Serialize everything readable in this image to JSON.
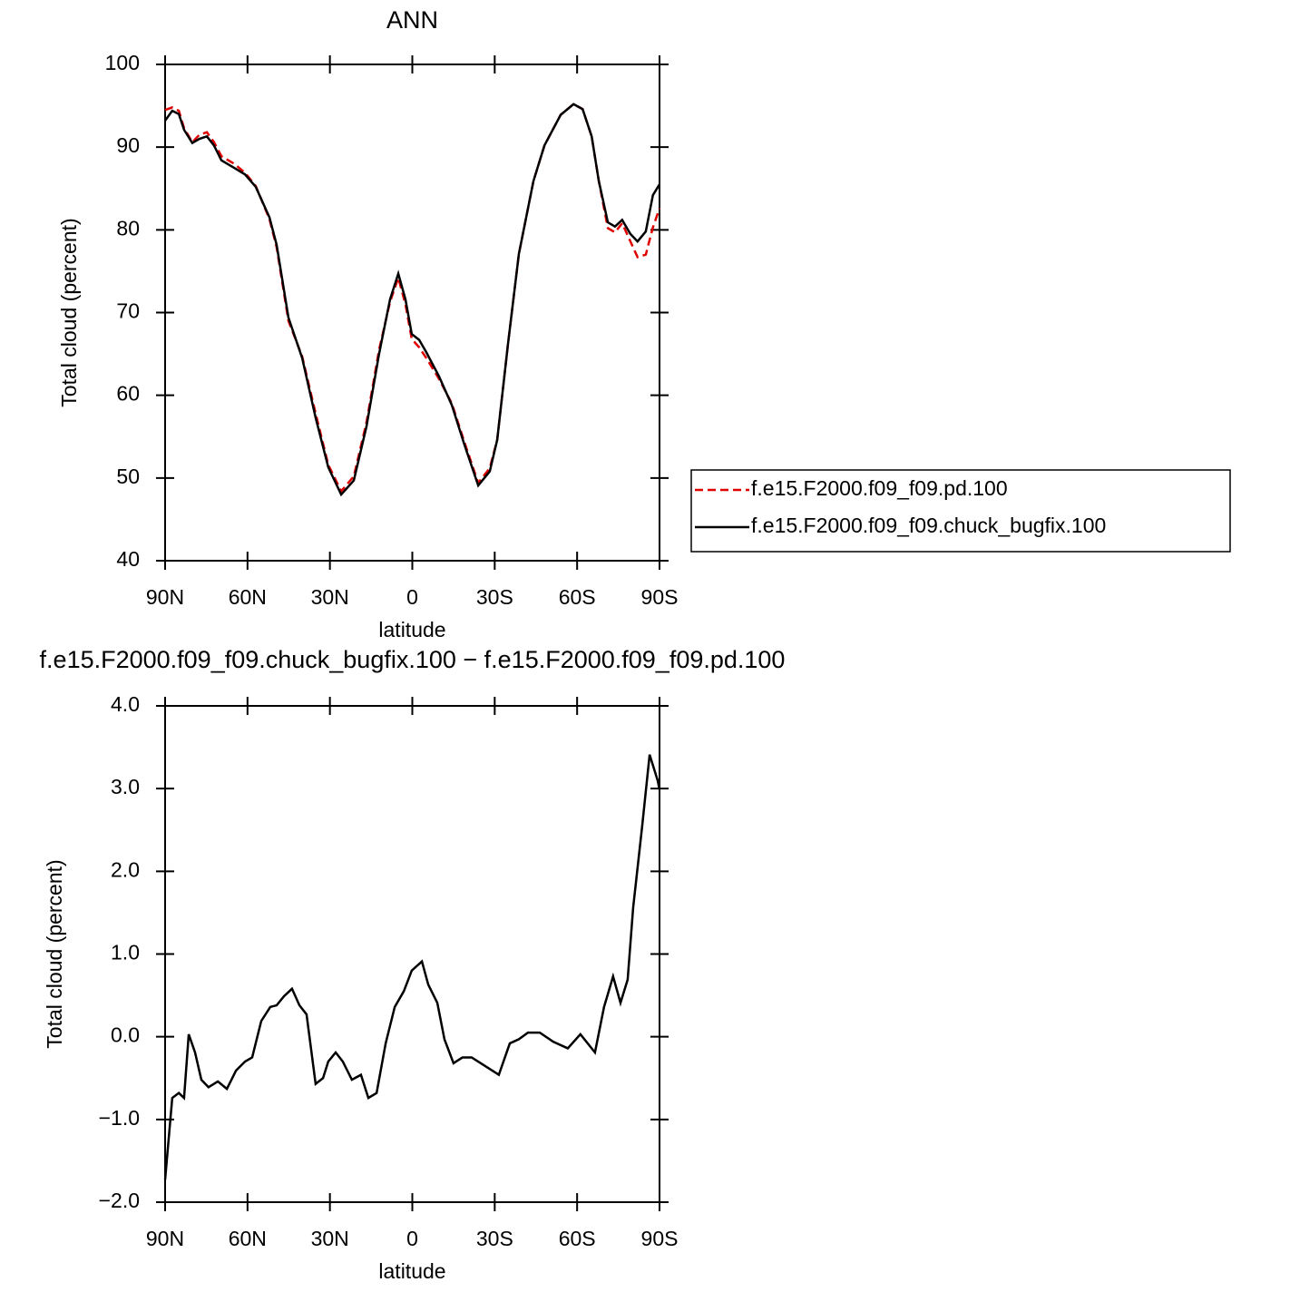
{
  "chart_data": [
    {
      "type": "line",
      "title": "ANN",
      "x_label": "latitude",
      "y_label": "Total cloud (percent)",
      "x": [
        90,
        87.4,
        85.0,
        83.1,
        80.1,
        77.5,
        74.8,
        72.2,
        69.5,
        64.9,
        60.9,
        57.0,
        52.0,
        49.4,
        45.1,
        40.1,
        35.2,
        30.6,
        25.9,
        21.3,
        16.7,
        12.1,
        8.1,
        5.1,
        2.5,
        0.2,
        -2.5,
        -5.1,
        -9.7,
        -14.4,
        -19.0,
        -24.0,
        -28.2,
        -30.9,
        -34.8,
        -38.8,
        -44.1,
        -48.1,
        -54.0,
        -58.7,
        -62.0,
        -65.3,
        -67.9,
        -71.2,
        -73.8,
        -76.4,
        -79.4,
        -82.0,
        -85.0,
        -87.6,
        -90
      ],
      "series": [
        {
          "name": "f.e15.F2000.f09_f09.pd.100",
          "color": "#e00000",
          "line_style": "dashed",
          "values": [
            94.5,
            94.8,
            94.4,
            92.3,
            90.6,
            91.5,
            91.8,
            90.6,
            88.9,
            88.0,
            86.9,
            85.3,
            81.3,
            77.9,
            69.0,
            64.7,
            57.8,
            51.6,
            48.4,
            50.2,
            56.7,
            65.5,
            71.3,
            74.2,
            71.0,
            66.8,
            65.8,
            64.5,
            62.0,
            59.0,
            54.3,
            49.4,
            51.2,
            54.6,
            66.1,
            77.1,
            85.9,
            90.2,
            93.9,
            95.2,
            94.6,
            91.3,
            85.9,
            80.2,
            79.7,
            80.8,
            78.6,
            76.7,
            77.0,
            80.3,
            82.6
          ]
        },
        {
          "name": "f.e15.F2000.f09_f09.chuck_bugfix.100",
          "color": "#000000",
          "line_style": "solid",
          "values": [
            93.2,
            94.4,
            94.0,
            92.1,
            90.5,
            91.0,
            91.3,
            90.2,
            88.4,
            87.5,
            86.7,
            85.2,
            81.5,
            78.2,
            69.4,
            64.5,
            57.3,
            51.3,
            48.0,
            49.7,
            56.2,
            65.0,
            71.6,
            74.7,
            71.6,
            67.4,
            66.7,
            65.2,
            62.3,
            58.8,
            54.0,
            49.1,
            50.8,
            54.6,
            66.1,
            77.1,
            85.9,
            90.2,
            93.9,
            95.2,
            94.6,
            91.3,
            85.9,
            80.9,
            80.4,
            81.2,
            79.5,
            78.6,
            79.8,
            84.2,
            85.5
          ]
        }
      ],
      "xlim": [
        90,
        -90
      ],
      "ylim": [
        40,
        100
      ],
      "xticks": [
        {
          "value": 90,
          "label": "90N"
        },
        {
          "value": 60,
          "label": "60N"
        },
        {
          "value": 30,
          "label": "30N"
        },
        0,
        {
          "value": -30,
          "label": "30S"
        },
        {
          "value": -60,
          "label": "60S"
        },
        {
          "value": -90,
          "label": "90S"
        }
      ],
      "yticks": [
        40,
        50,
        60,
        70,
        80,
        90,
        100
      ],
      "legend": "right"
    },
    {
      "type": "line",
      "title": "f.e15.F2000.f09_f09.chuck_bugfix.100 − f.e15.F2000.f09_f09.pd.100",
      "x_label": "latitude",
      "y_label": "Total cloud (percent)",
      "x": [
        90,
        87.4,
        85.0,
        83.1,
        81.4,
        79.1,
        76.8,
        74.2,
        70.8,
        67.5,
        64.2,
        60.9,
        58.3,
        55.0,
        51.7,
        49.4,
        46.7,
        43.8,
        41.1,
        38.5,
        35.2,
        32.5,
        30.6,
        27.9,
        25.3,
        22.0,
        18.7,
        16.0,
        13.0,
        9.7,
        6.4,
        3.1,
        0.2,
        -3.5,
        -5.8,
        -9.1,
        -11.7,
        -15.0,
        -18.3,
        -21.6,
        -24.9,
        -28.2,
        -31.5,
        -35.5,
        -38.8,
        -42.1,
        -46.4,
        -51.3,
        -56.6,
        -61.2,
        -66.5,
        -69.8,
        -73.1,
        -75.8,
        -78.4,
        -80.4,
        -83.7,
        -86.4,
        -89.3,
        -90
      ],
      "series": [
        {
          "color": "#000000",
          "line_style": "solid",
          "values": [
            -1.73,
            -0.74,
            -0.68,
            -0.74,
            0.03,
            -0.19,
            -0.52,
            -0.61,
            -0.54,
            -0.63,
            -0.41,
            -0.3,
            -0.25,
            0.19,
            0.36,
            0.38,
            0.49,
            0.58,
            0.38,
            0.27,
            -0.57,
            -0.5,
            -0.3,
            -0.19,
            -0.3,
            -0.52,
            -0.46,
            -0.74,
            -0.68,
            -0.08,
            0.36,
            0.55,
            0.8,
            0.91,
            0.63,
            0.41,
            -0.03,
            -0.32,
            -0.25,
            -0.25,
            -0.32,
            -0.39,
            -0.46,
            -0.08,
            -0.03,
            0.05,
            0.05,
            -0.06,
            -0.14,
            0.03,
            -0.19,
            0.36,
            0.73,
            0.41,
            0.69,
            1.56,
            2.55,
            3.41,
            3.1,
            2.99
          ]
        }
      ],
      "xlim": [
        90,
        -90
      ],
      "ylim": [
        -2,
        4
      ],
      "xticks": [
        {
          "value": 90,
          "label": "90N"
        },
        {
          "value": 60,
          "label": "60N"
        },
        {
          "value": 30,
          "label": "30N"
        },
        0,
        {
          "value": -30,
          "label": "30S"
        },
        {
          "value": -60,
          "label": "60S"
        },
        {
          "value": -90,
          "label": "90S"
        }
      ],
      "yticks": [
        {
          "value": -2,
          "label": "−2.0"
        },
        {
          "value": -1,
          "label": "−1.0"
        },
        {
          "value": 0,
          "label": "0.0"
        },
        {
          "value": 1,
          "label": "1.0"
        },
        {
          "value": 2,
          "label": "2.0"
        },
        {
          "value": 3,
          "label": "3.0"
        },
        {
          "value": 4,
          "label": "4.0"
        }
      ]
    }
  ]
}
